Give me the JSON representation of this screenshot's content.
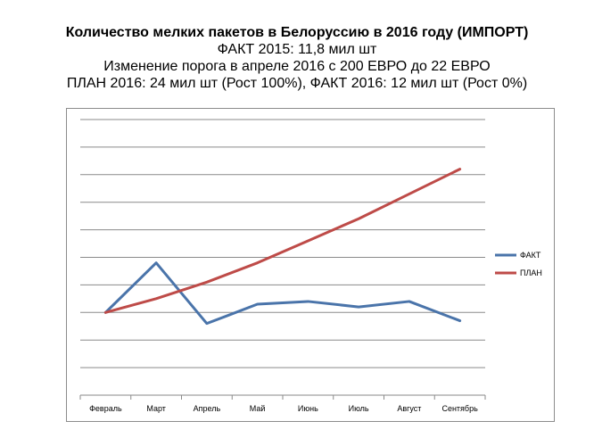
{
  "titles": {
    "line1": "Количество мелких пакетов в Белоруссию в 2016 году (ИМПОРТ)",
    "line2": "ФАКТ 2015: 11,8 мил шт",
    "line3": "Изменение порога в апреле 2016 с 200 ЕВРО до 22 ЕВРО",
    "line4": "ПЛАН 2016: 24 мил шт (Рост 100%), ФАКТ 2016: 12 мил шт (Рост 0%)"
  },
  "chart_data": {
    "type": "line",
    "categories": [
      "Февраль",
      "Март",
      "Апрель",
      "Май",
      "Июнь",
      "Июль",
      "Август",
      "Сентябрь"
    ],
    "series": [
      {
        "name": "ФАКТ",
        "color": "#4a74aa",
        "values": [
          3.0,
          4.8,
          2.6,
          3.3,
          3.4,
          3.2,
          3.4,
          2.7
        ]
      },
      {
        "name": "ПЛАН",
        "color": "#be4b48",
        "values": [
          3.0,
          3.5,
          4.1,
          4.8,
          5.6,
          6.4,
          7.3,
          8.2
        ]
      }
    ],
    "ylim": [
      0,
      10
    ],
    "grid": true,
    "legend_position": "right"
  }
}
